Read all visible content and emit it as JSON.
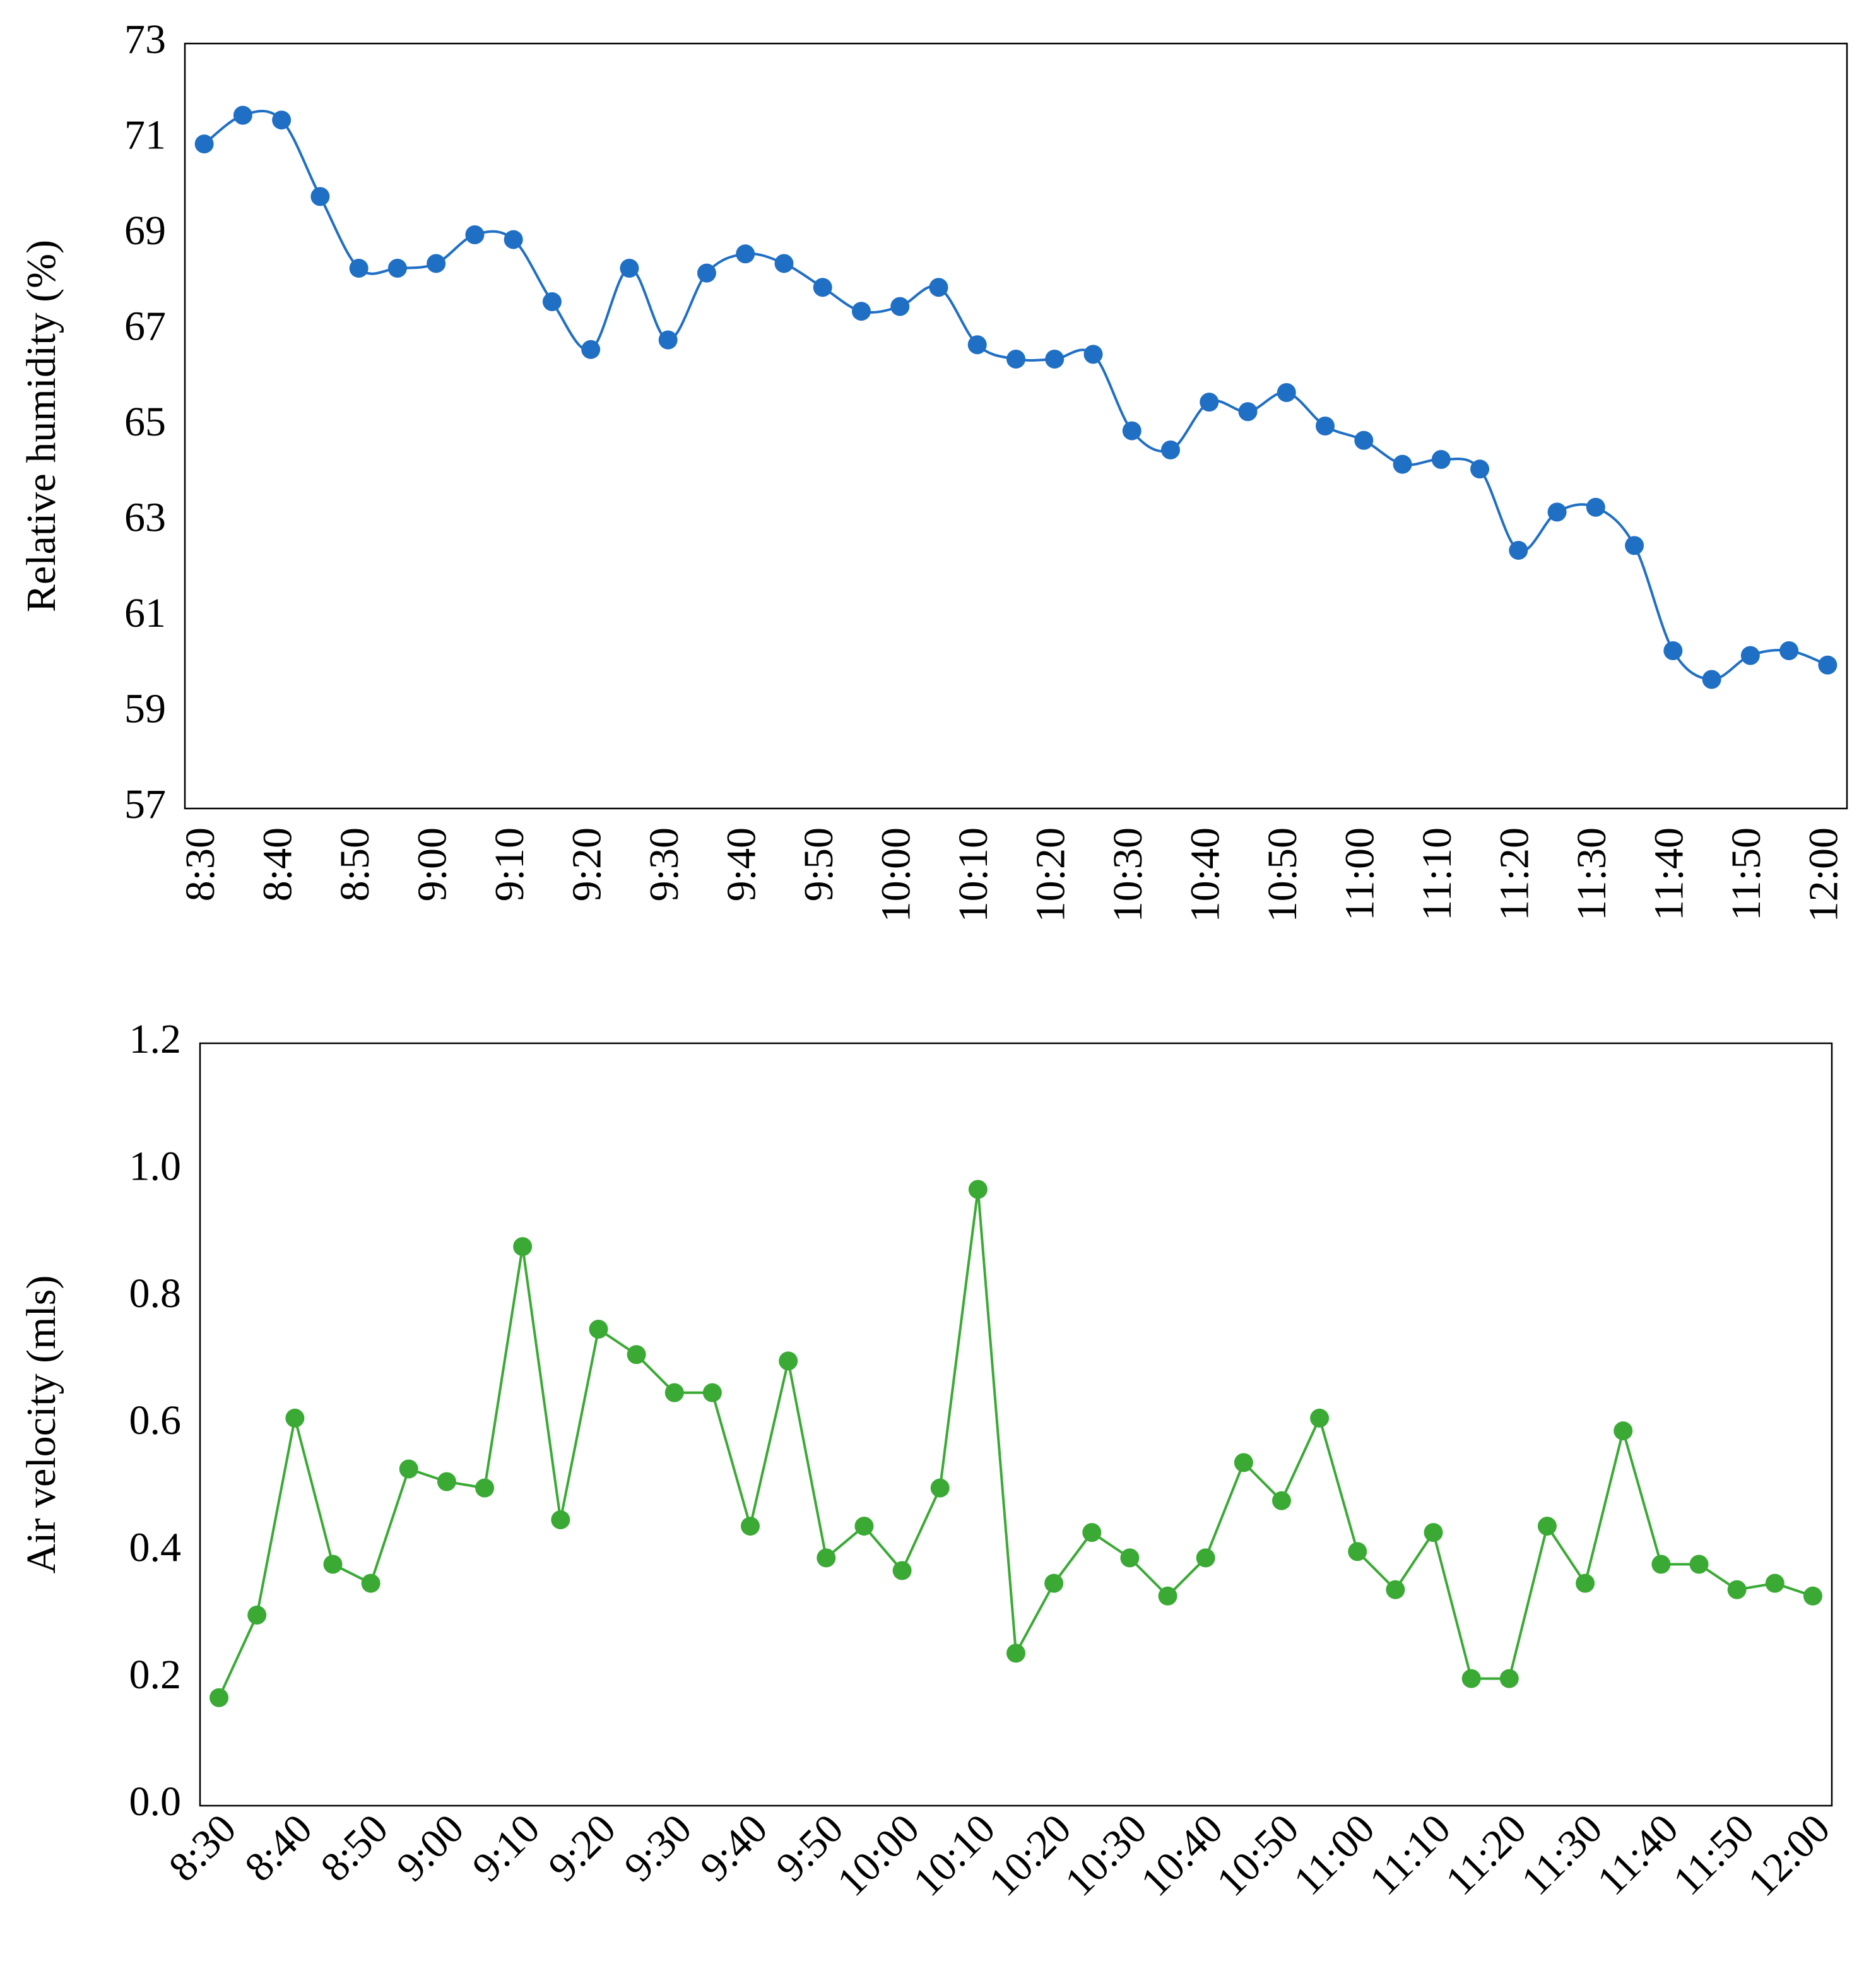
{
  "chart_data": [
    {
      "type": "line",
      "smooth": true,
      "y_label": "Relative humidity (%)",
      "categories": [
        "8:30",
        null,
        "8:40",
        null,
        "8:50",
        null,
        "9:00",
        null,
        "9:10",
        null,
        "9:20",
        null,
        "9:30",
        null,
        "9:40",
        null,
        "9:50",
        null,
        "10:00",
        null,
        "10:10",
        null,
        "10:20",
        null,
        "10:30",
        null,
        "10:40",
        null,
        "10:50",
        null,
        "11:00",
        null,
        "11:10",
        null,
        "11:20",
        null,
        "11:30",
        null,
        "11:40",
        null,
        "11:50",
        null,
        "12:00"
      ],
      "series": [
        {
          "color": "#1f6fc5",
          "values": [
            70.9,
            71.5,
            71.4,
            69.8,
            68.3,
            68.3,
            68.4,
            69.0,
            68.9,
            67.6,
            66.6,
            68.3,
            66.8,
            68.2,
            68.6,
            68.4,
            67.9,
            67.4,
            67.5,
            67.9,
            66.7,
            66.4,
            66.4,
            66.5,
            64.9,
            64.5,
            65.5,
            65.3,
            65.7,
            65.0,
            64.7,
            64.2,
            64.3,
            64.1,
            62.4,
            63.2,
            63.3,
            62.5,
            60.3,
            59.7,
            60.2,
            60.3,
            60.0
          ]
        }
      ],
      "ylim": [
        57,
        73
      ],
      "yticks": [
        57,
        59,
        61,
        63,
        65,
        67,
        69,
        71,
        73
      ],
      "x_label_rotation": -90
    },
    {
      "type": "line",
      "smooth": false,
      "y_label": "Air velocity (mls)",
      "categories": [
        "8:30",
        null,
        "8:40",
        null,
        "8:50",
        null,
        "9:00",
        null,
        "9:10",
        null,
        "9:20",
        null,
        "9:30",
        null,
        "9:40",
        null,
        "9:50",
        null,
        "10:00",
        null,
        "10:10",
        null,
        "10:20",
        null,
        "10:30",
        null,
        "10:40",
        null,
        "10:50",
        null,
        "11:00",
        null,
        "11:10",
        null,
        "11:20",
        null,
        "11:30",
        null,
        "11:40",
        null,
        "11:50",
        null,
        "12:00"
      ],
      "series": [
        {
          "color": "#3aaa35",
          "values": [
            0.17,
            0.3,
            0.61,
            0.38,
            0.35,
            0.53,
            0.51,
            0.5,
            0.88,
            0.45,
            0.75,
            0.71,
            0.65,
            0.65,
            0.44,
            0.7,
            0.39,
            0.44,
            0.37,
            0.5,
            0.97,
            0.24,
            0.35,
            0.43,
            0.39,
            0.33,
            0.39,
            0.54,
            0.48,
            0.61,
            0.4,
            0.34,
            0.43,
            0.2,
            0.2,
            0.44,
            0.35,
            0.59,
            0.38,
            0.38,
            0.34,
            0.35,
            0.33
          ]
        }
      ],
      "ylim": [
        0,
        1.2
      ],
      "yticks": [
        {
          "value": 0,
          "label": "0.0"
        },
        0.2,
        0.4,
        0.6,
        0.8,
        {
          "value": 1,
          "label": "1.0"
        },
        1.2
      ],
      "x_label_rotation": -45
    }
  ]
}
